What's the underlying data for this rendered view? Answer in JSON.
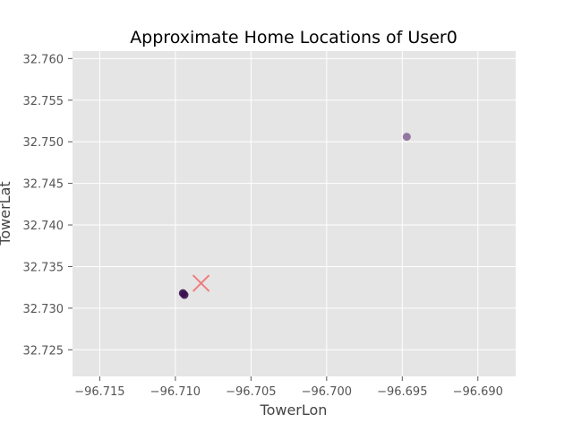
{
  "chart_data": {
    "type": "scatter",
    "title": "Approximate Home Locations of User0",
    "xlabel": "TowerLon",
    "ylabel": "TowerLat",
    "xlim": [
      -96.7168,
      -96.6875
    ],
    "ylim": [
      32.7218,
      32.7609
    ],
    "xticks": [
      -96.715,
      -96.71,
      -96.705,
      -96.7,
      -96.695,
      -96.69
    ],
    "xtick_labels": [
      "−96.715",
      "−96.710",
      "−96.705",
      "−96.700",
      "−96.695",
      "−96.690"
    ],
    "yticks": [
      32.725,
      32.73,
      32.735,
      32.74,
      32.745,
      32.75,
      32.755,
      32.76
    ],
    "ytick_labels": [
      "32.725",
      "32.730",
      "32.735",
      "32.740",
      "32.745",
      "32.750",
      "32.755",
      "32.760"
    ],
    "grid": true,
    "points": [
      {
        "x": -96.7095,
        "y": 32.7318,
        "color": "#3b0f4f"
      },
      {
        "x": -96.7094,
        "y": 32.7316,
        "color": "#3b0f4f"
      },
      {
        "x": -96.6947,
        "y": 32.7506,
        "color": "#8a6a9a"
      }
    ],
    "markers": [
      {
        "x": -96.7083,
        "y": 32.733,
        "shape": "x",
        "color": "#f07d7d"
      }
    ]
  }
}
